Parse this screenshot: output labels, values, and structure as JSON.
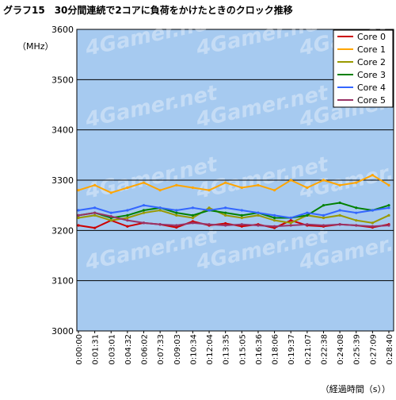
{
  "chart_data": {
    "type": "line",
    "title": "グラフ15　30分間連続で2コアに負荷をかけたときのクロック推移",
    "ylabel": "（MHz）",
    "xlabel": "（経過時間（s））",
    "ylim": [
      3000,
      3600
    ],
    "yticks": [
      3000,
      3100,
      3200,
      3300,
      3400,
      3500,
      3600
    ],
    "grid": true,
    "legend_position": "top-right",
    "background_color": "#a6caf0",
    "watermark": "4Gamer.net",
    "x_tick_labels": [
      "0:00:00",
      "0:01:31",
      "0:03:01",
      "0:04:32",
      "0:06:02",
      "0:07:33",
      "0:09:03",
      "0:10:34",
      "0:12:04",
      "0:13:35",
      "0:15:05",
      "0:16:36",
      "0:18:06",
      "0:19:37",
      "0:21:07",
      "0:22:38",
      "0:24:08",
      "0:25:39",
      "0:27:09",
      "0:28:40"
    ],
    "series": [
      {
        "name": "Core 0",
        "color": "#cc0000",
        "values": [
          3210,
          3205,
          3220,
          3208,
          3215,
          3212,
          3206,
          3218,
          3210,
          3214,
          3208,
          3212,
          3205,
          3220,
          3210,
          3208,
          3212,
          3210,
          3206,
          3212
        ]
      },
      {
        "name": "Core 1",
        "color": "#ffa500",
        "values": [
          3280,
          3290,
          3275,
          3285,
          3295,
          3280,
          3290,
          3285,
          3280,
          3295,
          3285,
          3290,
          3280,
          3300,
          3285,
          3300,
          3290,
          3295,
          3310,
          3290
        ]
      },
      {
        "name": "Core 2",
        "color": "#999900",
        "values": [
          3225,
          3230,
          3220,
          3225,
          3235,
          3240,
          3230,
          3225,
          3245,
          3230,
          3225,
          3230,
          3220,
          3215,
          3230,
          3225,
          3230,
          3220,
          3215,
          3230
        ]
      },
      {
        "name": "Core 3",
        "color": "#008000",
        "values": [
          3230,
          3235,
          3225,
          3230,
          3240,
          3245,
          3235,
          3230,
          3240,
          3235,
          3230,
          3235,
          3225,
          3225,
          3230,
          3250,
          3255,
          3245,
          3240,
          3250
        ]
      },
      {
        "name": "Core 4",
        "color": "#3366ff",
        "values": [
          3240,
          3245,
          3235,
          3240,
          3250,
          3245,
          3240,
          3245,
          3240,
          3245,
          3240,
          3235,
          3230,
          3225,
          3235,
          3230,
          3240,
          3235,
          3240,
          3245
        ]
      },
      {
        "name": "Core 5",
        "color": "#993366",
        "values": [
          3230,
          3235,
          3228,
          3220,
          3215,
          3212,
          3210,
          3215,
          3212,
          3210,
          3212,
          3210,
          3208,
          3210,
          3212,
          3210,
          3212,
          3210,
          3208,
          3210
        ]
      }
    ]
  }
}
